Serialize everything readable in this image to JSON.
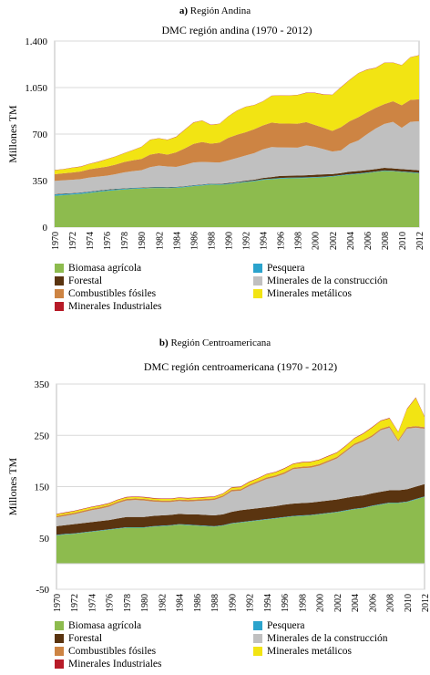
{
  "colors": {
    "Biomasa agrícola": "#8dbb4e",
    "Pesquera": "#2ba3cc",
    "Forestal": "#5a3410",
    "Minerales de la construcción": "#c0c0c0",
    "Combustibles fósiles": "#cd8443",
    "Minerales metálicos": "#f2e413",
    "Minerales Industriales": "#b71b28"
  },
  "chart_data": [
    {
      "type": "area",
      "panel_letter": "a)",
      "panel_name": "Región Andina",
      "title": "DMC región andina (1970 - 2012)",
      "ylabel": "Millones TM",
      "xlabel": "",
      "ylim": [
        0,
        1400
      ],
      "yticks": [
        0,
        350,
        700,
        1050,
        1400
      ],
      "ytick_labels": [
        "0",
        "350",
        "700",
        "1.050",
        "1.400"
      ],
      "x": [
        1970,
        1971,
        1972,
        1973,
        1974,
        1975,
        1976,
        1977,
        1978,
        1979,
        1980,
        1981,
        1982,
        1983,
        1984,
        1985,
        1986,
        1987,
        1988,
        1989,
        1990,
        1991,
        1992,
        1993,
        1994,
        1995,
        1996,
        1997,
        1998,
        1999,
        2000,
        2001,
        2002,
        2003,
        2004,
        2005,
        2006,
        2007,
        2008,
        2009,
        2010,
        2011,
        2012
      ],
      "xtick_labels": [
        "1970",
        "1972",
        "1974",
        "1976",
        "1978",
        "1980",
        "1982",
        "1984",
        "1986",
        "1988",
        "1990",
        "1992",
        "1994",
        "1996",
        "1998",
        "2000",
        "2002",
        "2004",
        "2006",
        "2008",
        "2010",
        "2012"
      ],
      "stacked": true,
      "series": [
        {
          "name": "Biomasa agrícola",
          "values": [
            235,
            240,
            245,
            250,
            257,
            265,
            272,
            278,
            283,
            287,
            290,
            293,
            294,
            293,
            295,
            300,
            308,
            313,
            320,
            318,
            322,
            330,
            338,
            345,
            355,
            360,
            365,
            367,
            368,
            370,
            372,
            375,
            380,
            388,
            395,
            400,
            407,
            415,
            422,
            420,
            415,
            410,
            405
          ]
        },
        {
          "name": "Pesquera",
          "values": [
            10,
            10,
            8,
            8,
            8,
            7,
            7,
            7,
            6,
            6,
            5,
            5,
            5,
            5,
            5,
            5,
            5,
            5,
            5,
            5,
            5,
            5,
            5,
            5,
            5,
            5,
            5,
            5,
            5,
            5,
            5,
            5,
            4,
            4,
            4,
            4,
            4,
            4,
            4,
            4,
            4,
            4,
            4
          ]
        },
        {
          "name": "Forestal",
          "values": [
            3,
            3,
            3,
            3,
            3,
            3,
            3,
            3,
            3,
            3,
            3,
            3,
            3,
            3,
            3,
            3,
            3,
            3,
            3,
            3,
            5,
            5,
            6,
            7,
            10,
            12,
            15,
            15,
            15,
            15,
            17,
            17,
            15,
            15,
            18,
            18,
            18,
            18,
            20,
            18,
            18,
            18,
            18
          ]
        },
        {
          "name": "Minerales de la construcción",
          "values": [
            100,
            100,
            100,
            100,
            105,
            105,
            105,
            110,
            120,
            125,
            130,
            150,
            160,
            155,
            150,
            160,
            170,
            170,
            160,
            160,
            170,
            180,
            190,
            200,
            215,
            225,
            215,
            212,
            210,
            225,
            210,
            190,
            170,
            170,
            210,
            230,
            270,
            305,
            330,
            350,
            310,
            360,
            370
          ]
        },
        {
          "name": "Combustibles fósiles",
          "values": [
            50,
            52,
            55,
            58,
            62,
            65,
            68,
            72,
            78,
            82,
            85,
            95,
            95,
            90,
            110,
            125,
            140,
            150,
            140,
            150,
            170,
            175,
            175,
            180,
            180,
            185,
            180,
            180,
            180,
            175,
            165,
            160,
            155,
            175,
            170,
            175,
            165,
            155,
            150,
            155,
            170,
            165,
            165
          ]
        },
        {
          "name": "Minerales metálicos",
          "values": [
            30,
            30,
            35,
            35,
            40,
            45,
            55,
            60,
            65,
            75,
            90,
            110,
            110,
            110,
            115,
            140,
            160,
            160,
            140,
            140,
            160,
            180,
            190,
            180,
            180,
            200,
            210,
            210,
            215,
            220,
            240,
            250,
            270,
            300,
            310,
            330,
            320,
            300,
            310,
            290,
            300,
            320,
            330
          ]
        },
        {
          "name": "Minerales Industriales",
          "values": [
            2,
            2,
            2,
            2,
            2,
            2,
            2,
            2,
            2,
            2,
            2,
            2,
            2,
            2,
            2,
            2,
            2,
            2,
            2,
            2,
            2,
            2,
            2,
            2,
            2,
            2,
            2,
            2,
            2,
            2,
            2,
            2,
            2,
            2,
            2,
            2,
            2,
            2,
            2,
            2,
            2,
            2,
            2
          ]
        }
      ]
    },
    {
      "type": "area",
      "panel_letter": "b)",
      "panel_name": "Región Centroamericana",
      "title": "DMC región centroamericana (1970 - 2012)",
      "ylabel": "Millones TM",
      "xlabel": "",
      "ylim": [
        -50,
        350
      ],
      "yticks": [
        -50,
        50,
        150,
        250,
        350
      ],
      "ytick_labels": [
        "-50",
        "50",
        "150",
        "250",
        "350"
      ],
      "x": [
        1970,
        1971,
        1972,
        1973,
        1974,
        1975,
        1976,
        1977,
        1978,
        1979,
        1980,
        1981,
        1982,
        1983,
        1984,
        1985,
        1986,
        1987,
        1988,
        1989,
        1990,
        1991,
        1992,
        1993,
        1994,
        1995,
        1996,
        1997,
        1998,
        1999,
        2000,
        2001,
        2002,
        2003,
        2004,
        2005,
        2006,
        2007,
        2008,
        2009,
        2010,
        2011,
        2012
      ],
      "xtick_labels": [
        "1970",
        "1972",
        "1974",
        "1976",
        "1978",
        "1980",
        "1982",
        "1984",
        "1986",
        "1988",
        "1990",
        "1992",
        "1994",
        "1996",
        "1998",
        "2000",
        "2002",
        "2004",
        "2006",
        "2008",
        "2010",
        "2012"
      ],
      "stacked": true,
      "series": [
        {
          "name": "Biomasa agrícola",
          "values": [
            55,
            57,
            58,
            60,
            62,
            64,
            66,
            68,
            70,
            70,
            70,
            72,
            73,
            74,
            76,
            75,
            74,
            73,
            72,
            74,
            78,
            80,
            82,
            84,
            86,
            88,
            90,
            92,
            93,
            94,
            96,
            98,
            100,
            103,
            106,
            108,
            112,
            115,
            118,
            118,
            120,
            125,
            130
          ]
        },
        {
          "name": "Pesquera",
          "values": [
            1,
            1,
            1,
            1,
            1,
            1,
            1,
            1,
            1,
            1,
            1,
            1,
            1,
            1,
            1,
            1,
            1,
            1,
            1,
            1,
            1,
            1,
            1,
            1,
            1,
            1,
            1,
            1,
            1,
            1,
            1,
            1,
            1,
            1,
            1,
            1,
            1,
            1,
            1,
            1,
            1,
            1,
            1
          ]
        },
        {
          "name": "Forestal",
          "values": [
            17,
            17,
            18,
            18,
            18,
            18,
            18,
            19,
            20,
            20,
            20,
            20,
            20,
            20,
            20,
            20,
            21,
            21,
            21,
            21,
            22,
            23,
            23,
            23,
            23,
            23,
            24,
            24,
            24,
            24,
            24,
            24,
            24,
            24,
            24,
            24,
            24,
            24,
            24,
            24,
            24,
            24,
            24
          ]
        },
        {
          "name": "Minerales de la construcción",
          "values": [
            17,
            18,
            19,
            21,
            23,
            24,
            26,
            30,
            32,
            33,
            32,
            28,
            26,
            25,
            25,
            25,
            26,
            28,
            30,
            34,
            40,
            38,
            45,
            50,
            55,
            57,
            60,
            67,
            68,
            68,
            70,
            75,
            80,
            90,
            100,
            105,
            110,
            120,
            122,
            95,
            118,
            115,
            108
          ]
        },
        {
          "name": "Combustibles fósiles",
          "values": [
            3,
            3,
            3,
            3,
            3,
            3,
            3,
            3,
            3,
            3,
            3,
            3,
            3,
            3,
            3,
            3,
            3,
            3,
            3,
            3,
            3,
            3,
            3,
            3,
            3,
            3,
            3,
            3,
            3,
            3,
            3,
            3,
            3,
            3,
            3,
            3,
            3,
            3,
            3,
            3,
            3,
            3,
            3
          ]
        },
        {
          "name": "Minerales metálicos",
          "values": [
            3,
            3,
            3,
            3,
            3,
            3,
            3,
            3,
            3,
            3,
            3,
            3,
            3,
            3,
            3,
            3,
            3,
            3,
            3,
            3,
            4,
            4,
            5,
            5,
            6,
            6,
            7,
            7,
            8,
            8,
            8,
            8,
            8,
            8,
            10,
            12,
            15,
            15,
            15,
            15,
            35,
            55,
            20
          ]
        },
        {
          "name": "Minerales Industriales",
          "values": [
            1,
            1,
            1,
            1,
            1,
            1,
            1,
            1,
            1,
            1,
            1,
            1,
            1,
            1,
            1,
            1,
            1,
            1,
            1,
            1,
            1,
            1,
            1,
            1,
            1,
            1,
            1,
            1,
            1,
            1,
            1,
            1,
            1,
            1,
            1,
            1,
            1,
            1,
            1,
            1,
            1,
            1,
            1
          ]
        }
      ]
    }
  ],
  "legend": {
    "labels": [
      "Biomasa agrícola",
      "Pesquera",
      "Forestal",
      "Minerales de la construcción",
      "Combustibles fósiles",
      "Minerales metálicos",
      "Minerales Industriales"
    ]
  }
}
